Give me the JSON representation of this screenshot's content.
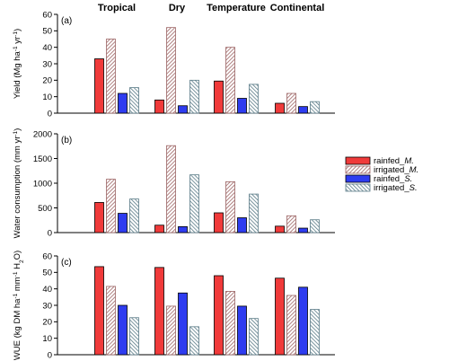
{
  "colors": {
    "rainfed_M": "#f03a3a",
    "irrigated_M": "#9c6464",
    "rainfed_S": "#2e3cf0",
    "irrigated_S": "#5a7b87"
  },
  "chart_data": [
    {
      "type": "bar",
      "panel_label": "(a)",
      "categories": [
        "Tropical",
        "Dry",
        "Temperature",
        "Continental"
      ],
      "ylabel": "Yield (Mg ha⁻¹ yr⁻¹)",
      "ylim": [
        0,
        60
      ],
      "yticks": [
        0,
        10,
        20,
        30,
        40,
        50,
        60
      ],
      "series": [
        {
          "name": "rainfed_M.",
          "values": [
            33,
            8,
            19.5,
            6
          ]
        },
        {
          "name": "irrigated_M.",
          "values": [
            45,
            52,
            40,
            12
          ]
        },
        {
          "name": "rainfed_S.",
          "values": [
            12,
            4.5,
            9,
            4
          ]
        },
        {
          "name": "irrigated_S.",
          "values": [
            15.5,
            20,
            17.5,
            7
          ]
        }
      ]
    },
    {
      "type": "bar",
      "panel_label": "(b)",
      "categories": [
        "Tropical",
        "Dry",
        "Temperature",
        "Continental"
      ],
      "ylabel": "Water consumption (mm yr⁻¹)",
      "ylim": [
        0,
        2000
      ],
      "yticks": [
        0,
        500,
        1000,
        1500,
        2000
      ],
      "series": [
        {
          "name": "rainfed_M.",
          "values": [
            610,
            150,
            400,
            130
          ]
        },
        {
          "name": "irrigated_M.",
          "values": [
            1080,
            1760,
            1030,
            340
          ]
        },
        {
          "name": "rainfed_S.",
          "values": [
            390,
            120,
            300,
            90
          ]
        },
        {
          "name": "irrigated_S.",
          "values": [
            680,
            1170,
            780,
            260
          ]
        }
      ]
    },
    {
      "type": "bar",
      "panel_label": "(c)",
      "categories": [
        "Tropical",
        "Dry",
        "Temperature",
        "Continental"
      ],
      "ylabel": "WUE (kg DM ha⁻¹ mm⁻¹ H₂O)",
      "ylim": [
        0,
        60
      ],
      "yticks": [
        0,
        10,
        20,
        30,
        40,
        50,
        60
      ],
      "series": [
        {
          "name": "rainfed_M.",
          "values": [
            53.5,
            53,
            48,
            46.5
          ]
        },
        {
          "name": "irrigated_M.",
          "values": [
            41.5,
            29.5,
            38.5,
            36
          ]
        },
        {
          "name": "rainfed_S.",
          "values": [
            30,
            37.5,
            29.5,
            41
          ]
        },
        {
          "name": "irrigated_S.",
          "values": [
            22.5,
            17,
            22,
            27.5
          ]
        }
      ]
    }
  ],
  "legend": {
    "placement": "right",
    "items": [
      {
        "label": "rainfed_",
        "italic": "M."
      },
      {
        "label": "irrigated_",
        "italic": "M."
      },
      {
        "label": "rainfed_",
        "italic": "S."
      },
      {
        "label": "irrigated_",
        "italic": "S."
      }
    ]
  }
}
